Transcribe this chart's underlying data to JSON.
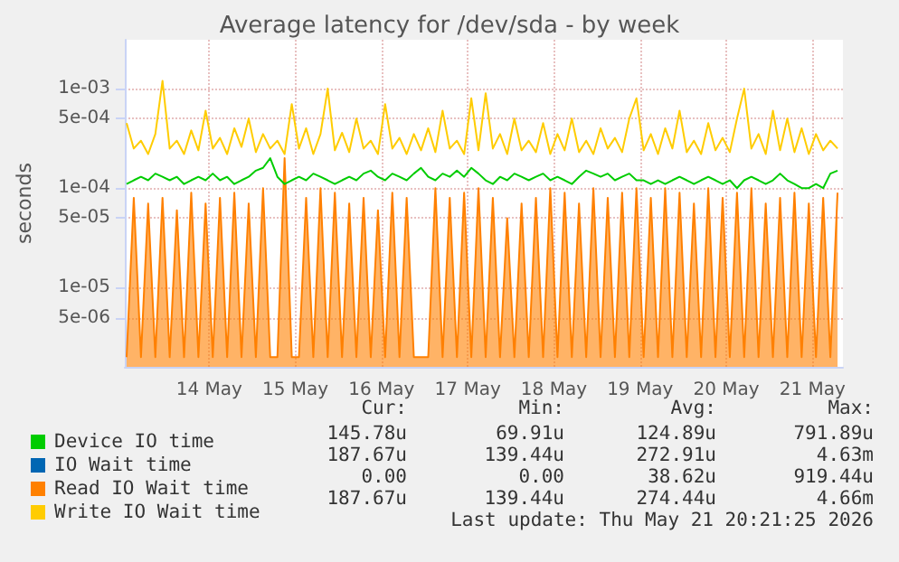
{
  "chart_data": {
    "type": "line",
    "title": "Average latency for /dev/sda - by week",
    "ylabel": "seconds",
    "log": "y",
    "grid": true,
    "legend": "bottom left",
    "marker": "none",
    "xlim": [
      "2026-05-13T12:30",
      "2026-05-21T20:30"
    ],
    "xticks": [
      {
        "value": "2026-05-14T12:00",
        "label": "14 May"
      },
      {
        "value": "2026-05-15T12:00",
        "label": "15 May"
      },
      {
        "value": "2026-05-16T12:00",
        "label": "16 May"
      },
      {
        "value": "2026-05-17T12:00",
        "label": "17 May"
      },
      {
        "value": "2026-05-18T12:00",
        "label": "18 May"
      },
      {
        "value": "2026-05-19T12:00",
        "label": "19 May"
      },
      {
        "value": "2026-05-20T12:00",
        "label": "20 May"
      },
      {
        "value": "2026-05-21T12:00",
        "label": "21 May"
      }
    ],
    "ylim": [
      1.6e-06,
      0.0031
    ],
    "yticks": [
      {
        "value": 5e-06,
        "label": "5e-06"
      },
      {
        "value": 1e-05,
        "label": "1e-05"
      },
      {
        "value": 5e-05,
        "label": "5e-05"
      },
      {
        "value": 0.0001,
        "label": "1e-04"
      },
      {
        "value": 0.0005,
        "label": "5e-04"
      },
      {
        "value": 0.001,
        "label": "1e-03"
      }
    ],
    "x": [
      "2026-05-13T13:00",
      "2026-05-13T15:00",
      "2026-05-13T17:00",
      "2026-05-13T19:00",
      "2026-05-13T21:00",
      "2026-05-13T23:00",
      "2026-05-14T01:00",
      "2026-05-14T03:00",
      "2026-05-14T05:00",
      "2026-05-14T07:00",
      "2026-05-14T09:00",
      "2026-05-14T11:00",
      "2026-05-14T13:00",
      "2026-05-14T15:00",
      "2026-05-14T17:00",
      "2026-05-14T19:00",
      "2026-05-14T21:00",
      "2026-05-14T23:00",
      "2026-05-15T01:00",
      "2026-05-15T03:00",
      "2026-05-15T05:00",
      "2026-05-15T07:00",
      "2026-05-15T09:00",
      "2026-05-15T11:00",
      "2026-05-15T13:00",
      "2026-05-15T15:00",
      "2026-05-15T17:00",
      "2026-05-15T19:00",
      "2026-05-15T21:00",
      "2026-05-15T23:00",
      "2026-05-16T01:00",
      "2026-05-16T03:00",
      "2026-05-16T05:00",
      "2026-05-16T07:00",
      "2026-05-16T09:00",
      "2026-05-16T11:00",
      "2026-05-16T13:00",
      "2026-05-16T15:00",
      "2026-05-16T17:00",
      "2026-05-16T19:00",
      "2026-05-16T21:00",
      "2026-05-16T23:00",
      "2026-05-17T01:00",
      "2026-05-17T03:00",
      "2026-05-17T05:00",
      "2026-05-17T07:00",
      "2026-05-17T09:00",
      "2026-05-17T11:00",
      "2026-05-17T13:00",
      "2026-05-17T15:00",
      "2026-05-17T17:00",
      "2026-05-17T19:00",
      "2026-05-17T21:00",
      "2026-05-17T23:00",
      "2026-05-18T01:00",
      "2026-05-18T03:00",
      "2026-05-18T05:00",
      "2026-05-18T07:00",
      "2026-05-18T09:00",
      "2026-05-18T11:00",
      "2026-05-18T13:00",
      "2026-05-18T15:00",
      "2026-05-18T17:00",
      "2026-05-18T19:00",
      "2026-05-18T21:00",
      "2026-05-18T23:00",
      "2026-05-19T01:00",
      "2026-05-19T03:00",
      "2026-05-19T05:00",
      "2026-05-19T07:00",
      "2026-05-19T09:00",
      "2026-05-19T11:00",
      "2026-05-19T13:00",
      "2026-05-19T15:00",
      "2026-05-19T17:00",
      "2026-05-19T19:00",
      "2026-05-19T21:00",
      "2026-05-19T23:00",
      "2026-05-20T01:00",
      "2026-05-20T03:00",
      "2026-05-20T05:00",
      "2026-05-20T07:00",
      "2026-05-20T09:00",
      "2026-05-20T11:00",
      "2026-05-20T13:00",
      "2026-05-20T15:00",
      "2026-05-20T17:00",
      "2026-05-20T19:00",
      "2026-05-20T21:00",
      "2026-05-20T23:00",
      "2026-05-21T01:00",
      "2026-05-21T03:00",
      "2026-05-21T05:00",
      "2026-05-21T07:00",
      "2026-05-21T09:00",
      "2026-05-21T11:00",
      "2026-05-21T13:00",
      "2026-05-21T15:00",
      "2026-05-21T17:00",
      "2026-05-21T19:00"
    ],
    "series": [
      {
        "name": "Device IO time",
        "color": "#00cc00",
        "values": [
          0.00011,
          0.00012,
          0.00013,
          0.00012,
          0.00014,
          0.00013,
          0.00012,
          0.00013,
          0.00011,
          0.00012,
          0.00013,
          0.00012,
          0.00014,
          0.00012,
          0.00013,
          0.00011,
          0.00012,
          0.00013,
          0.00015,
          0.00016,
          0.0002,
          0.00013,
          0.00011,
          0.00012,
          0.00013,
          0.00012,
          0.00014,
          0.00013,
          0.00012,
          0.00011,
          0.00012,
          0.00013,
          0.00012,
          0.00014,
          0.00015,
          0.00013,
          0.00012,
          0.00014,
          0.00013,
          0.00012,
          0.00014,
          0.00016,
          0.00013,
          0.00012,
          0.00014,
          0.00013,
          0.00015,
          0.00013,
          0.00016,
          0.00014,
          0.00012,
          0.00011,
          0.00013,
          0.00012,
          0.00014,
          0.00013,
          0.00012,
          0.00013,
          0.00014,
          0.00012,
          0.00013,
          0.00012,
          0.00011,
          0.00013,
          0.00015,
          0.00014,
          0.00013,
          0.00014,
          0.00012,
          0.00013,
          0.00014,
          0.00012,
          0.00012,
          0.00011,
          0.00012,
          0.00011,
          0.00012,
          0.00013,
          0.00012,
          0.00011,
          0.00012,
          0.00013,
          0.00012,
          0.00011,
          0.00012,
          0.0001,
          0.00012,
          0.00013,
          0.00012,
          0.00011,
          0.00012,
          0.00014,
          0.00012,
          0.00011,
          0.0001,
          0.0001,
          0.00011,
          0.0001,
          0.00014,
          0.00015
        ]
      },
      {
        "name": "IO Wait time",
        "color": "#0066b3",
        "values": [
          null,
          null,
          null,
          null,
          null,
          null,
          null,
          null,
          null,
          null,
          null,
          null,
          null,
          null,
          null,
          null,
          null,
          null,
          null,
          null,
          null,
          null,
          null,
          null,
          null,
          null,
          null,
          null,
          null,
          null,
          null,
          null,
          null,
          null,
          null,
          null,
          null,
          null,
          null,
          null,
          null,
          null,
          null,
          null,
          null,
          null,
          null,
          null,
          null,
          null,
          null,
          null,
          null,
          null,
          null,
          null,
          null,
          null,
          null,
          null,
          null,
          null,
          null,
          null,
          null,
          null,
          null,
          null,
          null,
          null,
          null,
          null,
          null,
          null,
          null,
          null,
          null,
          null,
          null,
          null,
          null,
          null,
          null,
          null,
          null,
          null,
          null,
          null,
          null,
          null,
          null,
          null,
          null,
          null,
          null,
          null,
          null,
          null,
          null,
          null
        ]
      },
      {
        "name": "Read IO Wait time",
        "type": "area",
        "color": "#ff8000",
        "values": [
          2e-06,
          8e-05,
          2e-06,
          7e-05,
          2e-06,
          8e-05,
          2e-06,
          6e-05,
          2e-06,
          9e-05,
          2e-06,
          7e-05,
          2e-06,
          8e-05,
          2e-06,
          9e-05,
          2e-06,
          7e-05,
          2e-06,
          0.0001,
          2e-06,
          2e-06,
          0.0002,
          2e-06,
          2e-06,
          8e-05,
          2e-06,
          0.0001,
          2e-06,
          9e-05,
          2e-06,
          7e-05,
          2e-06,
          8e-05,
          2e-06,
          6e-05,
          2e-06,
          9e-05,
          2e-06,
          8e-05,
          2e-06,
          2e-06,
          2e-06,
          0.0001,
          2e-06,
          8e-05,
          2e-06,
          9e-05,
          2e-06,
          0.0001,
          2e-06,
          8e-05,
          2e-06,
          5e-05,
          2e-06,
          7e-05,
          2e-06,
          8e-05,
          2e-06,
          0.0001,
          2e-06,
          9e-05,
          2e-06,
          7e-05,
          2e-06,
          0.0001,
          2e-06,
          8e-05,
          2e-06,
          9e-05,
          2e-06,
          0.0001,
          2e-06,
          8e-05,
          2e-06,
          0.0001,
          2e-06,
          9e-05,
          2e-06,
          7e-05,
          2e-06,
          0.0001,
          2e-06,
          8e-05,
          2e-06,
          9e-05,
          2e-06,
          0.0001,
          2e-06,
          7e-05,
          2e-06,
          8e-05,
          2e-06,
          9e-05,
          2e-06,
          7e-05,
          2e-06,
          8e-05,
          2e-06,
          9e-05
        ]
      },
      {
        "name": "Write IO Wait time",
        "color": "#ffcc00",
        "values": [
          0.00045,
          0.00025,
          0.0003,
          0.00022,
          0.00035,
          0.0012,
          0.00025,
          0.0003,
          0.00022,
          0.00038,
          0.00024,
          0.0006,
          0.00025,
          0.00032,
          0.00022,
          0.0004,
          0.00026,
          0.0005,
          0.00023,
          0.00035,
          0.00025,
          0.0003,
          0.00022,
          0.0007,
          0.00025,
          0.0004,
          0.00022,
          0.00035,
          0.001,
          0.00024,
          0.00036,
          0.00023,
          0.0005,
          0.00025,
          0.0003,
          0.00022,
          0.0007,
          0.00025,
          0.00032,
          0.00022,
          0.00035,
          0.00024,
          0.0004,
          0.00023,
          0.0006,
          0.00025,
          0.0003,
          0.00022,
          0.0008,
          0.00024,
          0.0009,
          0.00025,
          0.00035,
          0.00022,
          0.0005,
          0.00024,
          0.0003,
          0.00023,
          0.00045,
          0.00022,
          0.00035,
          0.00024,
          0.0005,
          0.00023,
          0.0003,
          0.00022,
          0.0004,
          0.00025,
          0.00032,
          0.00023,
          0.0005,
          0.0008,
          0.00024,
          0.00035,
          0.00022,
          0.0004,
          0.00025,
          0.0006,
          0.00023,
          0.0003,
          0.00022,
          0.00045,
          0.00024,
          0.00032,
          0.00023,
          0.0005,
          0.001,
          0.00025,
          0.00035,
          0.00022,
          0.0006,
          0.00024,
          0.0005,
          0.00023,
          0.0004,
          0.00022,
          0.00035,
          0.00024,
          0.0003,
          0.00025
        ]
      }
    ],
    "annotations": [
      "Cur:",
      "Min:",
      "Avg:",
      "Max:",
      "145.78u",
      "69.91u",
      "124.89u",
      "791.89u",
      "187.67u",
      "139.44u",
      "272.91u",
      "4.63m",
      "0.00",
      "0.00",
      "38.62u",
      "919.44u",
      "187.67u",
      "139.44u",
      "274.44u",
      "4.66m",
      "Last update: Thu May 21 20:21:25 2026"
    ]
  }
}
